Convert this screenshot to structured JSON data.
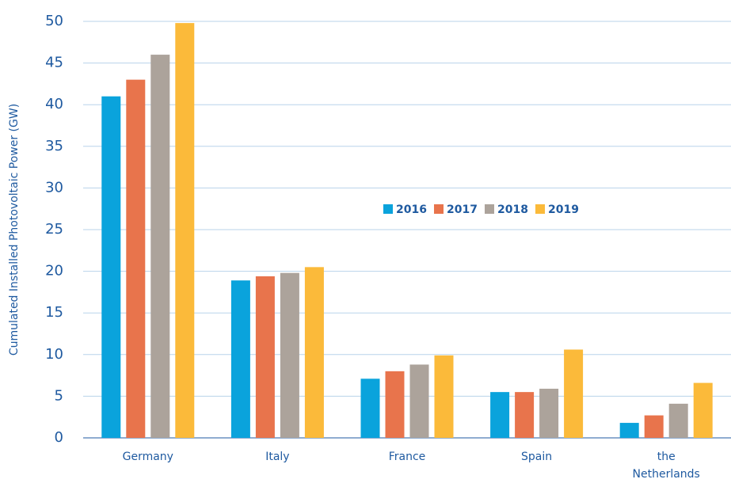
{
  "chart_data": {
    "type": "bar",
    "ylabel": "Cumulated Installed Photovoltaic Power (GW)",
    "categories": [
      "Germany",
      "Italy",
      "France",
      "Spain",
      "the Netherlands"
    ],
    "series": [
      {
        "name": "2016",
        "color": "#0aa3dc",
        "values": [
          41,
          18.9,
          7.1,
          5.5,
          1.8
        ]
      },
      {
        "name": "2017",
        "color": "#e8744c",
        "values": [
          43,
          19.4,
          8.0,
          5.5,
          2.7
        ]
      },
      {
        "name": "2018",
        "color": "#aca39b",
        "values": [
          46,
          19.8,
          8.8,
          5.9,
          4.1
        ]
      },
      {
        "name": "2019",
        "color": "#fbba3a",
        "values": [
          49.8,
          20.5,
          9.9,
          10.6,
          6.6
        ]
      }
    ],
    "ylim": [
      0,
      50
    ],
    "yticks": [
      0,
      5,
      10,
      15,
      20,
      25,
      30,
      35,
      40,
      45,
      50
    ],
    "grid": true
  }
}
